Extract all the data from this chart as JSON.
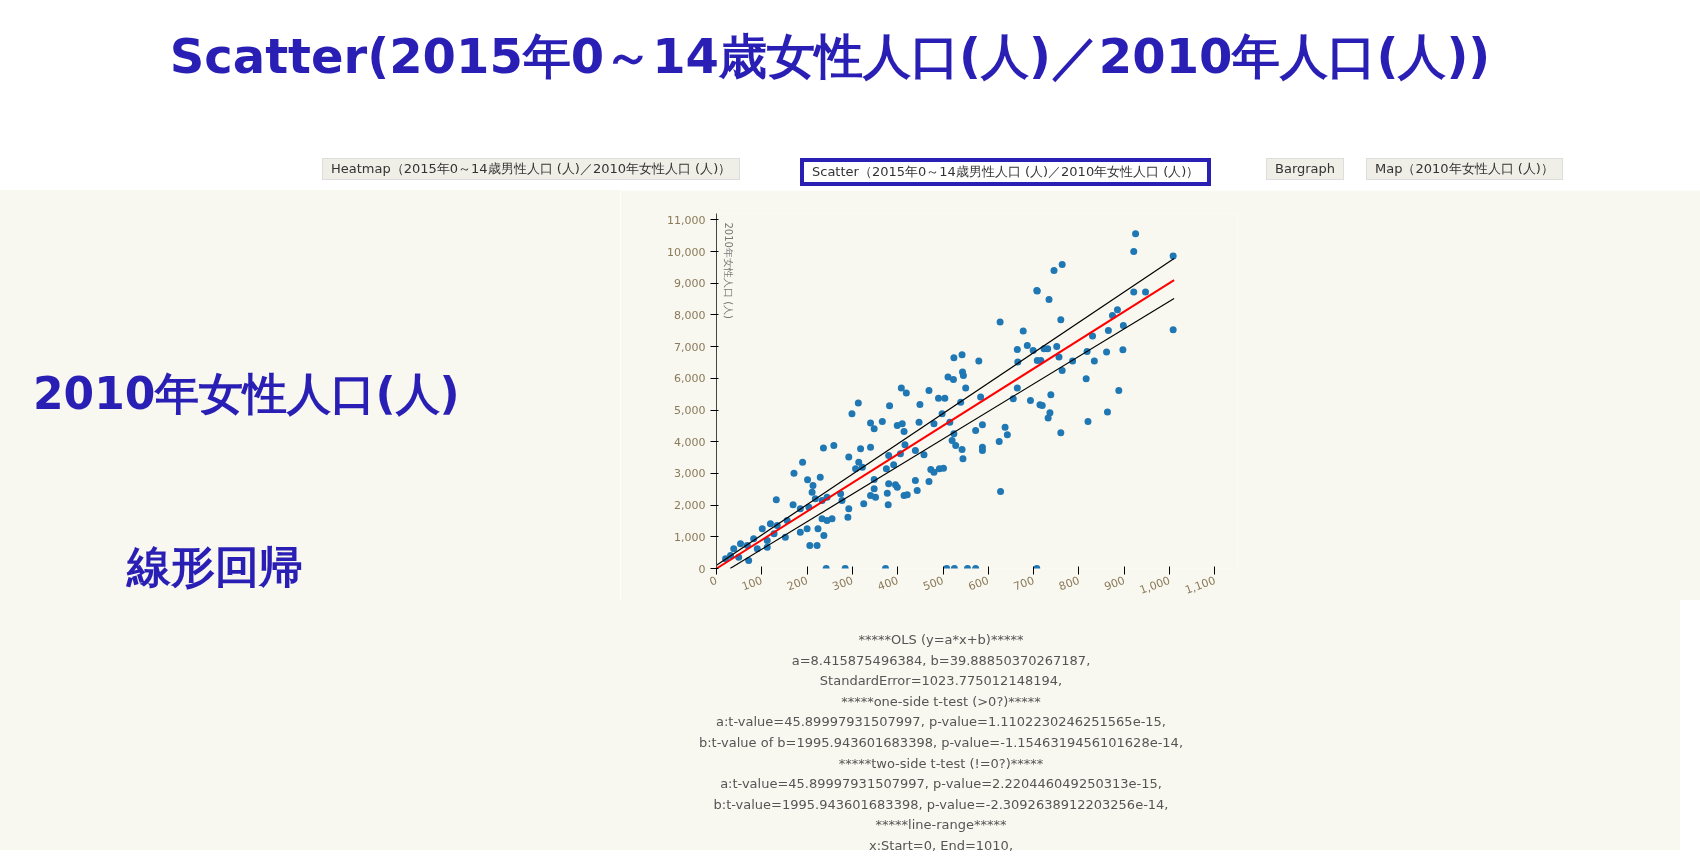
{
  "chart_data": {
    "type": "scatter",
    "title": "Scatter(2015年0～14歳女性人口(人)／2010年人口(人))",
    "ylabel": "2010年女性人口 (人)",
    "annotations": [
      "Heatmap（2015年0～14歳男性人口 (人)／2010年女性人口 (人)）",
      "Scatter（2015年0～14歳男性人口 (人)／2010年女性人口 (人)）",
      "Bargraph",
      "Map（2010年女性人口 (人)）",
      "2010年女性人口(人)",
      "線形回帰",
      "*****OLS (y=a*x+b)*****",
      "a=8.415875496384, b=39.88850370267187,",
      "StandardError=1023.775012148194,",
      "*****one-side t-test (>0?)*****",
      "a:t-value=45.89997931507997, p-value=1.1102230246251565e-15,",
      "b:t-value of b=1995.943601683398, p-value=-1.1546319456101628e-14,",
      "*****two-side t-test (!=0?)*****",
      "a:t-value=45.89997931507997, p-value=2.220446049250313e-15,",
      "b:t-value=1995.943601683398, p-value=-2.3092638912203256e-14,",
      "*****line-range*****",
      "x:Start=0, End=1010,"
    ],
    "xlim": [
      0,
      1150
    ],
    "ylim": [
      0,
      11200
    ],
    "xticks": [
      0,
      100,
      200,
      300,
      400,
      500,
      600,
      700,
      800,
      900,
      {
        "value": 1000,
        "label": "1,000"
      },
      {
        "value": 1100,
        "label": "1,100"
      }
    ],
    "yticks": [
      0,
      {
        "value": 1000,
        "label": "1,000"
      },
      {
        "value": 2000,
        "label": "2,000"
      },
      {
        "value": 3000,
        "label": "3,000"
      },
      {
        "value": 4000,
        "label": "4,000"
      },
      {
        "value": 5000,
        "label": "5,000"
      },
      {
        "value": 6000,
        "label": "6,000"
      },
      {
        "value": 7000,
        "label": "7,000"
      },
      {
        "value": 8000,
        "label": "8,000"
      },
      {
        "value": 9000,
        "label": "9,000"
      },
      {
        "value": 10000,
        "label": "10,000"
      },
      {
        "value": 11000,
        "label": "11,000"
      }
    ],
    "grid": false,
    "series": [
      {
        "marker": "circle",
        "color": "#1f77b4",
        "x": [
          707,
          626,
          677,
          686,
          699,
          664,
          665,
          708,
          524,
          542,
          579,
          511,
          523,
          543,
          545,
          550,
          408,
          419,
          469,
          490,
          504,
          539,
          583,
          664,
          655,
          693,
          714,
          313,
          299,
          382,
          449,
          447,
          340,
          366,
          348,
          399,
          410,
          414,
          480,
          498,
          515,
          572,
          587,
          524,
          520,
          528,
          542,
          544,
          587,
          587,
          624,
          637,
          642,
          236,
          259,
          292,
          318,
          340,
          416,
          406,
          439,
          458,
          348,
          314,
          322,
          307,
          380,
          375,
          391,
          473,
          492,
          501,
          480,
          469,
          439,
          443,
          380,
          395,
          399,
          377,
          379,
          414,
          421,
          348,
          340,
          351,
          325,
          292,
          290,
          274,
          277,
          244,
          190,
          171,
          201,
          213,
          229,
          211,
          218,
          233,
          169,
          185,
          204,
          132,
          233,
          244,
          255,
          224,
          237,
          185,
          200,
          156,
          134,
          119,
          206,
          222,
          152,
          127,
          101,
          112,
          82,
          68,
          53,
          38,
          31,
          20,
          49,
          71,
          90,
          112,
          627,
          242,
          284,
          373,
          508,
          525,
          554,
          572,
          707,
          925,
          921,
          1008,
          763,
          745,
          708,
          734,
          921,
          947,
          760,
          874,
          885,
          1008,
          898,
          865,
          830,
          723,
          731,
          751,
          756,
          786,
          763,
          818,
          834,
          861,
          897,
          816,
          888,
          738,
          719,
          736,
          732,
          820,
          760,
          863,
          716
        ],
        "values": [
          8774,
          7774,
          7490,
          7038,
          6880,
          6912,
          6512,
          6564,
          6649,
          6743,
          6543,
          6038,
          5965,
          6196,
          6091,
          5691,
          5691,
          5533,
          5617,
          5375,
          5375,
          5249,
          5407,
          5691,
          5355,
          5302,
          5165,
          5218,
          4881,
          5134,
          5176,
          4618,
          4587,
          4639,
          4408,
          4513,
          4566,
          4324,
          4566,
          4881,
          4618,
          4355,
          4534,
          4250,
          4040,
          3882,
          3756,
          3461,
          3829,
          3724,
          4008,
          4460,
          4219,
          3798,
          3882,
          3514,
          3777,
          3829,
          3903,
          3619,
          3724,
          3587,
          2809,
          3356,
          3198,
          3145,
          3566,
          3145,
          3272,
          3124,
          3145,
          3166,
          3040,
          2746,
          2777,
          2462,
          2672,
          2640,
          2567,
          2378,
          2009,
          2304,
          2325,
          2514,
          2304,
          2251,
          2041,
          1883,
          1620,
          2356,
          2146,
          2251,
          3356,
          3009,
          2798,
          2619,
          2882,
          2409,
          2199,
          2146,
          2009,
          1883,
          1936,
          2167,
          1567,
          1515,
          1567,
          1252,
          1041,
          1147,
          1252,
          1515,
          1357,
          1410,
          726,
          726,
          989,
          1094,
          1252,
          884,
          936,
          726,
          778,
          621,
          410,
          305,
          358,
          252,
          621,
          673,
          2430,
          0,
          0,
          0,
          0,
          0,
          0,
          0,
          0,
          10562,
          10004,
          9857,
          9594,
          9405,
          8753,
          8490,
          8721,
          8721,
          7848,
          7985,
          8164,
          7532,
          7669,
          7511,
          7332,
          6933,
          6933,
          7006,
          6670,
          6543,
          6249,
          6849,
          6543,
          6828,
          6901,
          5986,
          5618,
          5481,
          5144,
          4913,
          4745,
          4639,
          4282,
          4934,
          6564
        ]
      },
      {
        "type": "line",
        "color": "#000000",
        "x": [
          0,
          1010
        ],
        "values": [
          100,
          9780
        ]
      },
      {
        "type": "line",
        "color": "#000000",
        "x": [
          30,
          1010
        ],
        "values": [
          0,
          8520
        ]
      },
      {
        "type": "line",
        "color": "#ff0000",
        "x": [
          0,
          1010
        ],
        "values": [
          0,
          9100
        ]
      }
    ]
  }
}
